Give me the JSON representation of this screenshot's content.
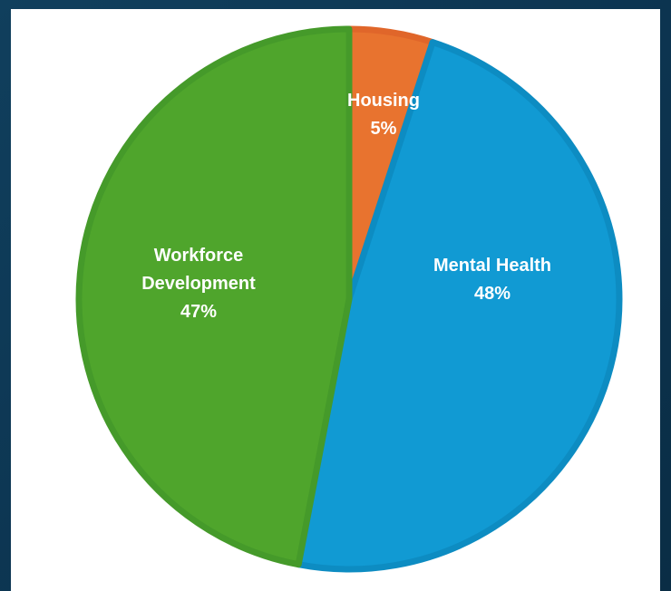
{
  "chart_data": {
    "type": "pie",
    "title": "",
    "slices": [
      {
        "name": "Housing",
        "label_lines": [
          "Housing"
        ],
        "percent_label": "5%",
        "value": 5,
        "color": "#e8732f",
        "border": "#e0662a"
      },
      {
        "name": "Mental Health",
        "label_lines": [
          "Mental Health"
        ],
        "percent_label": "48%",
        "value": 48,
        "color": "#119ad3",
        "border": "#0d8cc2"
      },
      {
        "name": "Workforce Development",
        "label_lines": [
          "Workforce",
          "Development"
        ],
        "percent_label": "47%",
        "value": 47,
        "color": "#4fa52c",
        "border": "#459a2a"
      }
    ],
    "start_angle_deg": 0,
    "direction": "clockwise",
    "legend": "none",
    "data_labels": "inside"
  },
  "colors": {
    "background": "#0f3b57",
    "panel": "#ffffff",
    "label_text": "#ffffff"
  }
}
